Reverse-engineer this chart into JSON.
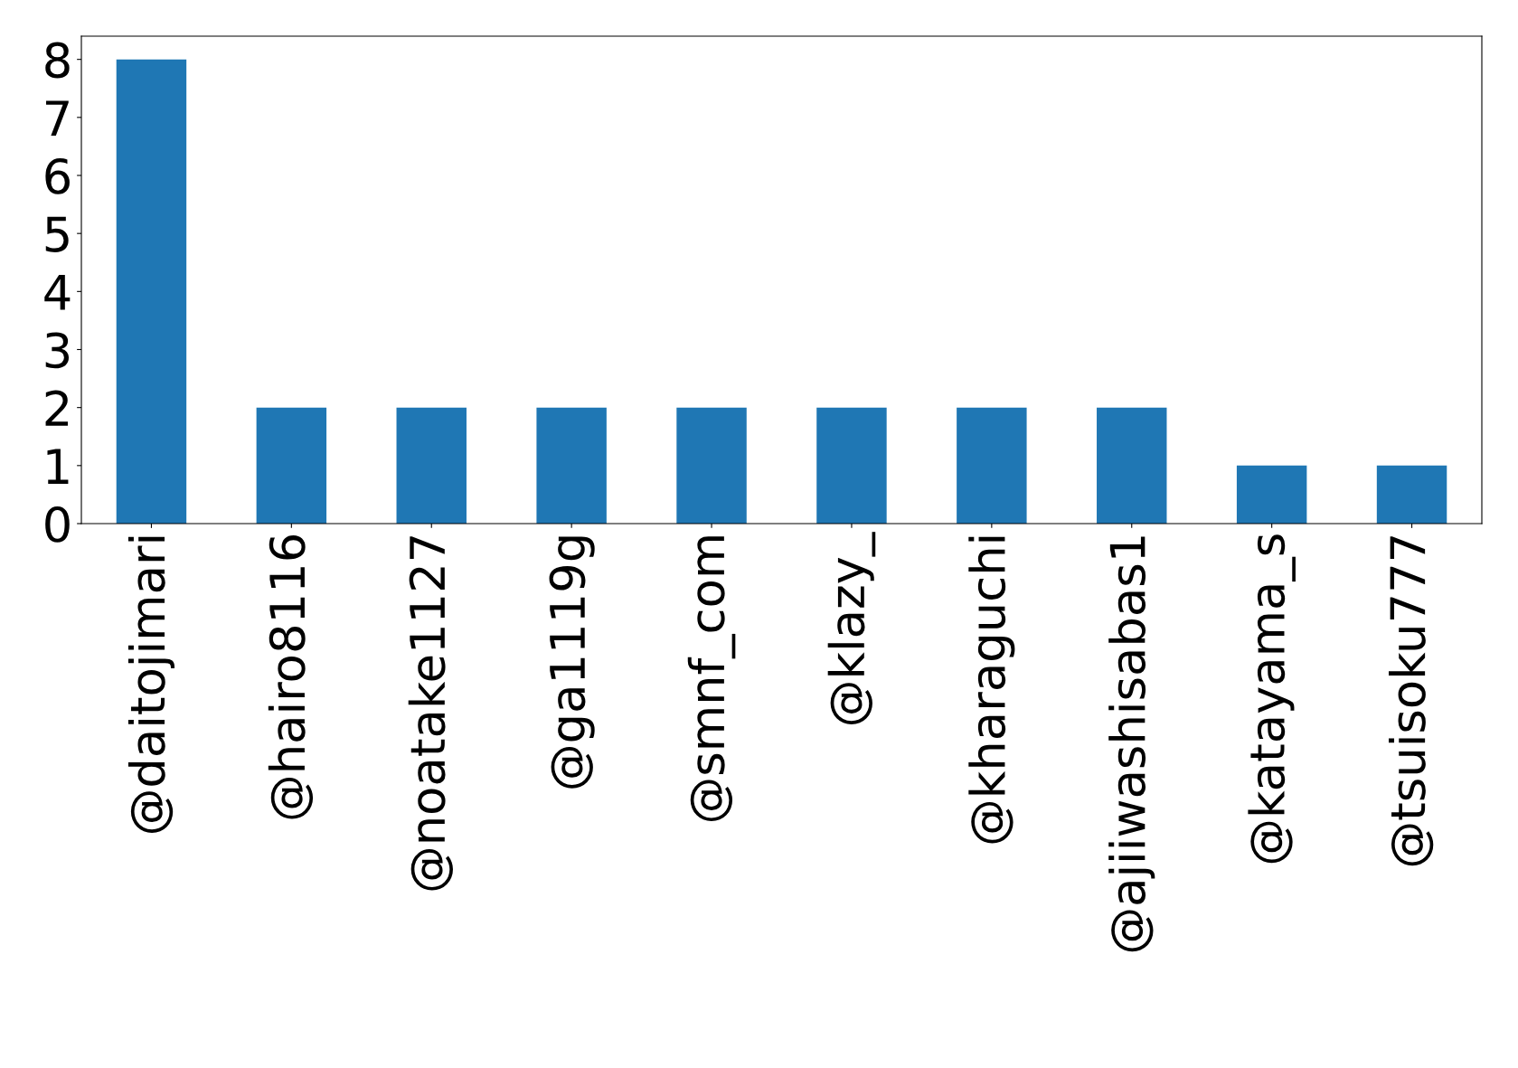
{
  "chart_data": {
    "type": "bar",
    "categories": [
      "@daitojimari",
      "@hairo8116",
      "@noatake1127",
      "@ga1119g",
      "@smnf_com",
      "@klazy_",
      "@kharaguchi",
      "@ajiiwashisabas1",
      "@katayama_s",
      "@tsuisoku777"
    ],
    "values": [
      8,
      2,
      2,
      2,
      2,
      2,
      2,
      2,
      1,
      1
    ],
    "color": "#1f77b4",
    "ylim": [
      0,
      8.4
    ],
    "yticks": [
      0,
      1,
      2,
      3,
      4,
      5,
      6,
      7,
      8
    ],
    "grid": false,
    "legend": false
  }
}
